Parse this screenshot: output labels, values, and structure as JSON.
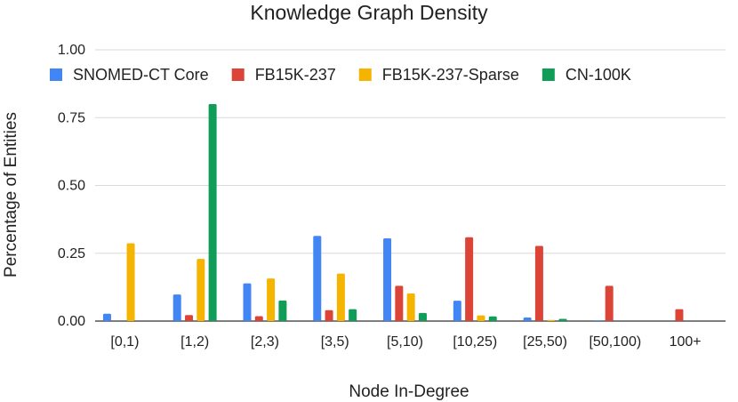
{
  "chart_data": {
    "type": "bar",
    "title": "Knowledge Graph Density",
    "xlabel": "Node In-Degree",
    "ylabel": "Percentage of Entities",
    "ylim": [
      0,
      1.0
    ],
    "yticks": [
      "0.00",
      "0.25",
      "0.50",
      "0.75",
      "1.00"
    ],
    "ytick_values": [
      0,
      0.25,
      0.5,
      0.75,
      1.0
    ],
    "grid": true,
    "legend_position": "top",
    "categories": [
      "[0,1)",
      "[1,2)",
      "[2,3)",
      "[3,5)",
      "[5,10)",
      "[10,25)",
      "[25,50)",
      "[50,100)",
      "100+"
    ],
    "series": [
      {
        "name": "SNOMED-CT Core",
        "color": "#4285F4",
        "values": [
          0.027,
          0.098,
          0.139,
          0.314,
          0.305,
          0.075,
          0.013,
          0.003,
          0.0
        ]
      },
      {
        "name": "FB15K-237",
        "color": "#DB4437",
        "values": [
          0.0,
          0.022,
          0.018,
          0.04,
          0.13,
          0.309,
          0.277,
          0.13,
          0.044
        ]
      },
      {
        "name": "FB15K-237-Sparse",
        "color": "#F4B400",
        "values": [
          0.287,
          0.229,
          0.157,
          0.175,
          0.102,
          0.021,
          0.004,
          0.0,
          0.0
        ]
      },
      {
        "name": "CN-100K",
        "color": "#0F9D58",
        "values": [
          0.0,
          0.8,
          0.076,
          0.044,
          0.03,
          0.017,
          0.008,
          0.0,
          0.0
        ]
      }
    ]
  }
}
